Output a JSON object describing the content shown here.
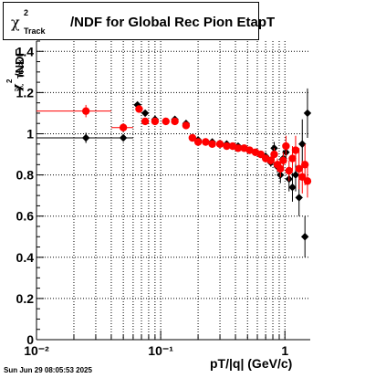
{
  "title": {
    "symbol": "χ",
    "sup": "2",
    "sub": "Track",
    "text": "/NDF for Global Rec Pion EtapT"
  },
  "y_axis_label": {
    "symbol": "χ",
    "sup": "2",
    "sub": "Track",
    "text": "/NDF"
  },
  "x_axis_label": "pT/|q| (GeV/c)",
  "timestamp": "Sun Jun 29 08:05:53 2025",
  "colors": {
    "series_black": "#000000",
    "series_red": "#ff0000",
    "grid": "#000000"
  },
  "chart_data": {
    "type": "scatter",
    "title": "χ2Track/NDF for Global Rec Pion EtapT",
    "xlabel": "pT/|q| (GeV/c)",
    "ylabel": "χ2Track/NDF",
    "xscale": "log",
    "xlim": [
      0.01,
      1.6
    ],
    "ylim": [
      0,
      1.45
    ],
    "x_ticks": [
      "10⁻²",
      "10⁻¹",
      "1"
    ],
    "y_ticks": [
      "0",
      "0.2",
      "0.4",
      "0.6",
      "0.8",
      "1",
      "1.2",
      "1.4"
    ],
    "grid": true,
    "series": [
      {
        "color": "#000000",
        "points": [
          {
            "x": 0.025,
            "y": 0.98,
            "xerr": [
              0.01,
              0.04
            ],
            "yerr": 0.025
          },
          {
            "x": 0.05,
            "y": 0.98,
            "xerr": [
              0.04,
              0.06
            ],
            "yerr": 0.015
          },
          {
            "x": 0.065,
            "y": 1.14,
            "yerr": 0.01
          },
          {
            "x": 0.075,
            "y": 1.1,
            "yerr": 0.01
          },
          {
            "x": 0.09,
            "y": 1.07,
            "yerr": 0.01
          },
          {
            "x": 0.11,
            "y": 1.06,
            "yerr": 0.01
          },
          {
            "x": 0.13,
            "y": 1.07,
            "yerr": 0.01
          },
          {
            "x": 0.16,
            "y": 1.05,
            "yerr": 0.01
          },
          {
            "x": 0.18,
            "y": 0.98,
            "yerr": 0.01
          },
          {
            "x": 0.2,
            "y": 0.97,
            "yerr": 0.01
          },
          {
            "x": 0.23,
            "y": 0.96,
            "yerr": 0.01
          },
          {
            "x": 0.26,
            "y": 0.96,
            "yerr": 0.01
          },
          {
            "x": 0.3,
            "y": 0.95,
            "yerr": 0.01
          },
          {
            "x": 0.34,
            "y": 0.95,
            "yerr": 0.01
          },
          {
            "x": 0.38,
            "y": 0.94,
            "yerr": 0.01
          },
          {
            "x": 0.42,
            "y": 0.94,
            "yerr": 0.01
          },
          {
            "x": 0.47,
            "y": 0.93,
            "yerr": 0.01
          },
          {
            "x": 0.52,
            "y": 0.92,
            "yerr": 0.01
          },
          {
            "x": 0.58,
            "y": 0.91,
            "yerr": 0.015
          },
          {
            "x": 0.64,
            "y": 0.9,
            "yerr": 0.015
          },
          {
            "x": 0.7,
            "y": 0.89,
            "yerr": 0.02
          },
          {
            "x": 0.77,
            "y": 0.86,
            "yerr": 0.02
          },
          {
            "x": 0.82,
            "y": 0.93,
            "yerr": 0.03
          },
          {
            "x": 0.87,
            "y": 0.84,
            "yerr": 0.03
          },
          {
            "x": 0.92,
            "y": 0.8,
            "yerr": 0.04
          },
          {
            "x": 0.97,
            "y": 0.88,
            "yerr": 0.04
          },
          {
            "x": 1.02,
            "y": 0.91,
            "yerr": 0.05
          },
          {
            "x": 1.08,
            "y": 0.78,
            "yerr": 0.06
          },
          {
            "x": 1.15,
            "y": 0.74,
            "yerr": 0.07
          },
          {
            "x": 1.22,
            "y": 0.8,
            "yerr": 0.08
          },
          {
            "x": 1.3,
            "y": 0.69,
            "yerr": 0.09
          },
          {
            "x": 1.38,
            "y": 0.95,
            "yerr": 0.12
          },
          {
            "x": 1.45,
            "y": 0.5,
            "yerr": 0.1
          },
          {
            "x": 1.52,
            "y": 1.1,
            "yerr": 0.12
          }
        ]
      },
      {
        "color": "#ff0000",
        "points": [
          {
            "x": 0.025,
            "y": 1.11,
            "xerr": [
              0.01,
              0.04
            ],
            "yerr": 0.03
          },
          {
            "x": 0.05,
            "y": 1.03,
            "xerr": [
              0.04,
              0.06
            ],
            "yerr": 0.02
          },
          {
            "x": 0.067,
            "y": 1.12,
            "yerr": 0.01
          },
          {
            "x": 0.075,
            "y": 1.06,
            "yerr": 0.01
          },
          {
            "x": 0.09,
            "y": 1.06,
            "yerr": 0.01
          },
          {
            "x": 0.11,
            "y": 1.06,
            "yerr": 0.01
          },
          {
            "x": 0.13,
            "y": 1.06,
            "yerr": 0.01
          },
          {
            "x": 0.16,
            "y": 1.04,
            "yerr": 0.01
          },
          {
            "x": 0.18,
            "y": 0.98,
            "yerr": 0.01
          },
          {
            "x": 0.2,
            "y": 0.96,
            "yerr": 0.01
          },
          {
            "x": 0.23,
            "y": 0.96,
            "yerr": 0.01
          },
          {
            "x": 0.26,
            "y": 0.95,
            "yerr": 0.01
          },
          {
            "x": 0.3,
            "y": 0.95,
            "yerr": 0.01
          },
          {
            "x": 0.34,
            "y": 0.94,
            "yerr": 0.01
          },
          {
            "x": 0.38,
            "y": 0.94,
            "yerr": 0.01
          },
          {
            "x": 0.42,
            "y": 0.93,
            "yerr": 0.01
          },
          {
            "x": 0.47,
            "y": 0.93,
            "yerr": 0.01
          },
          {
            "x": 0.52,
            "y": 0.92,
            "yerr": 0.01
          },
          {
            "x": 0.58,
            "y": 0.91,
            "yerr": 0.015
          },
          {
            "x": 0.64,
            "y": 0.9,
            "yerr": 0.015
          },
          {
            "x": 0.7,
            "y": 0.88,
            "yerr": 0.02
          },
          {
            "x": 0.77,
            "y": 0.87,
            "yerr": 0.02
          },
          {
            "x": 0.82,
            "y": 0.9,
            "yerr": 0.03
          },
          {
            "x": 0.87,
            "y": 0.85,
            "yerr": 0.03
          },
          {
            "x": 0.92,
            "y": 0.83,
            "yerr": 0.04
          },
          {
            "x": 0.97,
            "y": 0.87,
            "yerr": 0.04
          },
          {
            "x": 1.02,
            "y": 0.94,
            "yerr": 0.05
          },
          {
            "x": 1.08,
            "y": 0.82,
            "yerr": 0.05
          },
          {
            "x": 1.15,
            "y": 0.88,
            "yerr": 0.06
          },
          {
            "x": 1.22,
            "y": 0.92,
            "yerr": 0.07
          },
          {
            "x": 1.3,
            "y": 0.83,
            "yerr": 0.1
          },
          {
            "x": 1.38,
            "y": 0.79,
            "yerr": 0.08
          },
          {
            "x": 1.45,
            "y": 0.85,
            "yerr": 0.1
          },
          {
            "x": 1.52,
            "y": 0.77,
            "yerr": 0.08
          }
        ]
      }
    ]
  }
}
